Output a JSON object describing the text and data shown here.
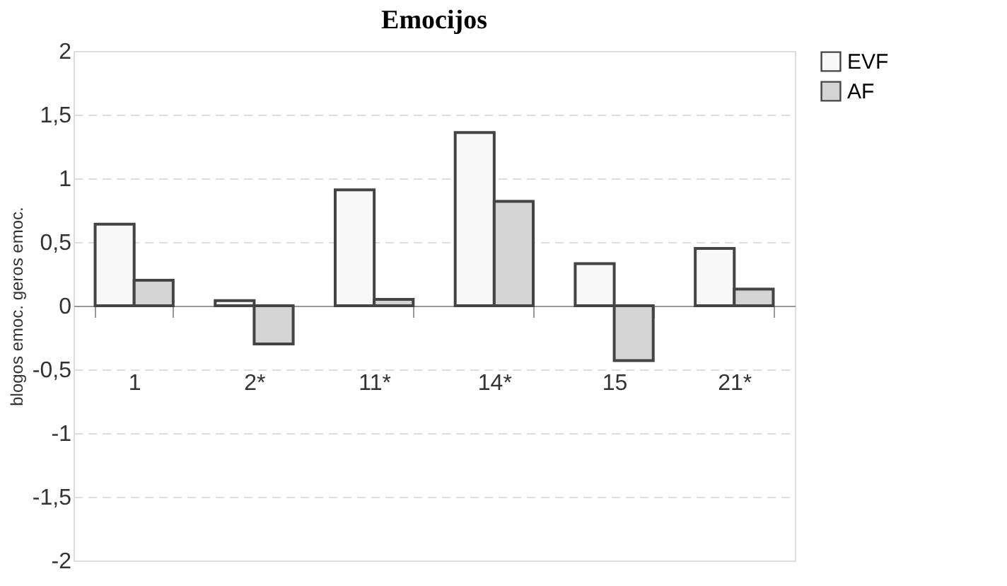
{
  "chart_data": {
    "type": "bar",
    "title": "Emocijos",
    "ylabel": "blogos emoc.          geros emoc.",
    "categories": [
      "1",
      "2*",
      "11*",
      "14*",
      "15",
      "21*"
    ],
    "series": [
      {
        "name": "EVF",
        "color": "#f8f8f8",
        "values": [
          0.64,
          0.04,
          0.91,
          1.36,
          0.33,
          0.45
        ]
      },
      {
        "name": "AF",
        "color": "#d4d4d4",
        "values": [
          0.2,
          -0.3,
          0.05,
          0.82,
          -0.43,
          0.13
        ]
      }
    ],
    "ylim": [
      -2,
      2
    ],
    "yticks": [
      {
        "value": -2,
        "label": "-2"
      },
      {
        "value": -1.5,
        "label": "-1,5"
      },
      {
        "value": -1,
        "label": "-1"
      },
      {
        "value": -0.5,
        "label": "-0,5"
      },
      {
        "value": 0,
        "label": "0"
      },
      {
        "value": 0.5,
        "label": "0,5"
      },
      {
        "value": 1,
        "label": "1"
      },
      {
        "value": 1.5,
        "label": "1,5"
      },
      {
        "value": 2,
        "label": "2"
      }
    ],
    "grid": "y",
    "legend": "top right"
  }
}
